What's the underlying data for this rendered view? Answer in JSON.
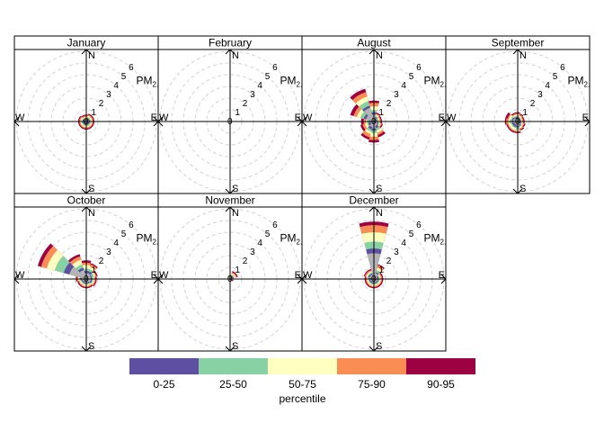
{
  "chart_data": {
    "type": "polar-percentile-rose",
    "title": "",
    "radial_variable": "PM",
    "radial_variable_subscript": "2.5",
    "radial_ticks": [
      "0",
      "1",
      "2",
      "3",
      "4",
      "5",
      "6"
    ],
    "compass_labels": {
      "n": "N",
      "e": "E",
      "s": "S",
      "w": "W"
    },
    "legend": {
      "title": "percentile",
      "position": "bottom",
      "bands": [
        {
          "label": "0-25",
          "color": "#5E4FA2"
        },
        {
          "label": "25-50",
          "color": "#88D1A4"
        },
        {
          "label": "50-75",
          "color": "#FFFFBF"
        },
        {
          "label": "75-90",
          "color": "#FA8D53"
        },
        {
          "label": "90-95",
          "color": "#9E0142"
        }
      ]
    },
    "mean_color": "#B3B3B3",
    "direction_bins_deg": [
      0,
      30,
      60,
      90,
      120,
      150,
      180,
      210,
      240,
      270,
      300,
      330
    ],
    "panels": [
      {
        "label": "January",
        "mean": [
          0.1,
          0.2,
          0.2,
          0.2,
          0.2,
          0.2,
          0.2,
          0.2,
          0.2,
          0.2,
          0.2,
          0.1
        ],
        "p25": [
          0.2,
          0.3,
          0.3,
          0.3,
          0.3,
          0.3,
          0.3,
          0.3,
          0.3,
          0.3,
          0.3,
          0.2
        ],
        "p50": [
          0.3,
          0.4,
          0.4,
          0.4,
          0.4,
          0.4,
          0.4,
          0.4,
          0.4,
          0.4,
          0.4,
          0.3
        ],
        "p75": [
          0.4,
          0.5,
          0.5,
          0.5,
          0.5,
          0.5,
          0.5,
          0.5,
          0.5,
          0.5,
          0.5,
          0.4
        ],
        "p90": [
          0.5,
          0.6,
          0.6,
          0.6,
          0.6,
          0.6,
          0.6,
          0.6,
          0.6,
          0.6,
          0.6,
          0.5
        ],
        "p95": [
          0.6,
          0.7,
          0.7,
          0.7,
          0.7,
          0.7,
          0.7,
          0.7,
          0.7,
          0.7,
          0.7,
          0.6
        ]
      },
      {
        "label": "February",
        "mean": [
          0,
          0,
          0,
          0,
          0,
          0,
          0,
          0,
          0,
          0,
          0,
          0
        ],
        "p25": [
          0,
          0,
          0,
          0,
          0,
          0,
          0,
          0,
          0,
          0,
          0,
          0
        ],
        "p50": [
          0,
          0,
          0,
          0,
          0,
          0,
          0,
          0,
          0,
          0,
          0,
          0
        ],
        "p75": [
          0,
          0,
          0,
          0,
          0,
          0,
          0,
          0,
          0,
          0,
          0,
          0
        ],
        "p90": [
          0,
          0,
          0,
          0,
          0,
          0,
          0,
          0,
          0,
          0,
          0,
          0
        ],
        "p95": [
          0,
          0,
          0,
          0,
          0,
          0,
          0,
          0,
          0,
          0,
          0,
          0
        ]
      },
      {
        "label": "August",
        "mean": [
          0.6,
          0.3,
          0.2,
          0.2,
          0.3,
          0.4,
          0.6,
          0.5,
          0.3,
          0.3,
          0.7,
          1.2
        ],
        "p25": [
          0.8,
          0.4,
          0.3,
          0.3,
          0.4,
          0.6,
          0.8,
          0.7,
          0.5,
          0.4,
          0.9,
          1.4
        ],
        "p50": [
          1.0,
          0.5,
          0.4,
          0.4,
          0.5,
          0.8,
          1.0,
          0.9,
          0.6,
          0.6,
          1.2,
          1.8
        ],
        "p75": [
          1.3,
          0.6,
          0.5,
          0.5,
          0.6,
          1.0,
          1.3,
          1.1,
          0.8,
          0.7,
          1.5,
          2.2
        ],
        "p90": [
          1.6,
          0.7,
          0.6,
          0.6,
          0.7,
          1.2,
          1.6,
          1.4,
          1.0,
          0.9,
          1.8,
          2.6
        ],
        "p95": [
          1.8,
          0.8,
          0.7,
          0.7,
          0.8,
          1.4,
          1.8,
          1.6,
          1.2,
          1.1,
          2.1,
          2.9
        ]
      },
      {
        "label": "September",
        "mean": [
          0.3,
          0.2,
          0.2,
          0.2,
          0.2,
          0.3,
          0.4,
          0.3,
          0.3,
          0.4,
          0.4,
          0.3
        ],
        "p25": [
          0.4,
          0.3,
          0.3,
          0.3,
          0.3,
          0.4,
          0.5,
          0.5,
          0.5,
          0.5,
          0.5,
          0.4
        ],
        "p50": [
          0.5,
          0.4,
          0.3,
          0.3,
          0.4,
          0.5,
          0.7,
          0.6,
          0.6,
          0.7,
          0.6,
          0.5
        ],
        "p75": [
          0.6,
          0.5,
          0.4,
          0.4,
          0.5,
          0.6,
          0.8,
          0.8,
          0.8,
          0.8,
          0.8,
          0.6
        ],
        "p90": [
          0.7,
          0.6,
          0.5,
          0.5,
          0.6,
          0.7,
          0.9,
          0.9,
          0.9,
          1.0,
          0.9,
          0.7
        ],
        "p95": [
          0.8,
          0.7,
          0.6,
          0.6,
          0.7,
          0.8,
          1.0,
          1.0,
          1.0,
          1.1,
          1.1,
          0.8
        ]
      },
      {
        "label": "October",
        "mean": [
          0.5,
          0.5,
          0.4,
          0.4,
          0.4,
          0.3,
          0.3,
          0.3,
          0.3,
          0.4,
          1.5,
          0.8
        ],
        "p25": [
          0.7,
          0.7,
          0.5,
          0.5,
          0.5,
          0.4,
          0.4,
          0.4,
          0.4,
          0.5,
          2.0,
          1.0
        ],
        "p50": [
          0.9,
          0.9,
          0.7,
          0.6,
          0.6,
          0.5,
          0.5,
          0.5,
          0.5,
          0.6,
          2.8,
          1.3
        ],
        "p75": [
          1.2,
          1.1,
          0.8,
          0.7,
          0.7,
          0.6,
          0.6,
          0.6,
          0.6,
          0.7,
          3.5,
          1.7
        ],
        "p90": [
          1.4,
          1.3,
          0.9,
          0.8,
          0.8,
          0.7,
          0.7,
          0.7,
          0.7,
          0.8,
          4.0,
          2.0
        ],
        "p95": [
          1.6,
          1.4,
          1.0,
          0.9,
          0.9,
          0.8,
          0.8,
          0.8,
          0.8,
          0.9,
          4.3,
          2.2
        ]
      },
      {
        "label": "November",
        "mean": [
          0.1,
          0.2,
          0.2,
          0.1,
          0.1,
          0.1,
          0.1,
          0.1,
          0.1,
          0.1,
          0.1,
          0.1
        ],
        "p25": [
          0.1,
          0.3,
          0.3,
          0.1,
          0.1,
          0.1,
          0.1,
          0.1,
          0.1,
          0.1,
          0.1,
          0.1
        ],
        "p50": [
          0.2,
          0.4,
          0.4,
          0.2,
          0.1,
          0.1,
          0.1,
          0.1,
          0.1,
          0.1,
          0.1,
          0.2
        ],
        "p75": [
          0.2,
          0.5,
          0.5,
          0.2,
          0.2,
          0.2,
          0.2,
          0.2,
          0.2,
          0.2,
          0.2,
          0.2
        ],
        "p90": [
          0.3,
          0.6,
          0.6,
          0.3,
          0.2,
          0.2,
          0.2,
          0.2,
          0.2,
          0.2,
          0.2,
          0.3
        ],
        "p95": [
          0.3,
          0.7,
          0.7,
          0.3,
          0.3,
          0.2,
          0.2,
          0.2,
          0.2,
          0.2,
          0.2,
          0.3
        ]
      },
      {
        "label": "December",
        "mean": [
          2.2,
          0.5,
          0.3,
          0.3,
          0.3,
          0.3,
          0.3,
          0.3,
          0.3,
          0.3,
          0.4,
          0.4
        ],
        "p25": [
          2.6,
          0.6,
          0.4,
          0.4,
          0.4,
          0.4,
          0.4,
          0.4,
          0.4,
          0.4,
          0.5,
          0.5
        ],
        "p50": [
          3.2,
          0.8,
          0.5,
          0.5,
          0.5,
          0.5,
          0.5,
          0.5,
          0.5,
          0.5,
          0.6,
          0.6
        ],
        "p75": [
          4.0,
          1.0,
          0.6,
          0.6,
          0.6,
          0.6,
          0.6,
          0.6,
          0.6,
          0.6,
          0.7,
          0.7
        ],
        "p90": [
          4.6,
          1.2,
          0.7,
          0.7,
          0.7,
          0.7,
          0.7,
          0.7,
          0.7,
          0.7,
          0.8,
          0.8
        ],
        "p95": [
          4.9,
          1.3,
          0.8,
          0.8,
          0.8,
          0.8,
          0.8,
          0.8,
          0.8,
          0.8,
          0.9,
          0.9
        ]
      }
    ]
  }
}
